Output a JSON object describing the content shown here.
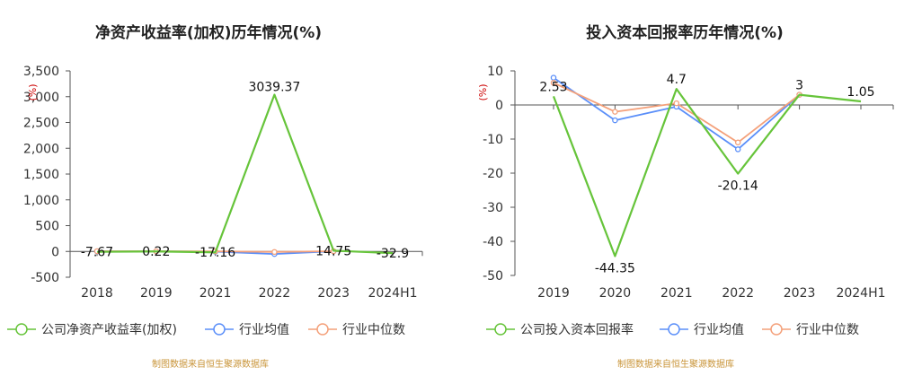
{
  "chart_data": [
    {
      "type": "line",
      "title": "净资产收益率(加权)历年情况(%)",
      "unit_label": "(%)",
      "categories": [
        "2018",
        "2019",
        "2021",
        "2022",
        "2023",
        "2024H1"
      ],
      "ylim": [
        -500,
        3500
      ],
      "yticks": [
        3500,
        3000,
        2500,
        2000,
        1500,
        1000,
        500,
        0,
        -500
      ],
      "ytick_labels": [
        "3,500",
        "3,000",
        "2,500",
        "2,000",
        "1,500",
        "1,000",
        "500",
        "0",
        "-500"
      ],
      "series": [
        {
          "name": "公司净资产收益率(加权)",
          "color": "#66c43a",
          "values": [
            -7.67,
            0.22,
            -17.16,
            3039.37,
            14.75,
            -32.9
          ],
          "labels": [
            "-7.67",
            "0.22",
            "-17.16",
            "3039.37",
            "14.75",
            "-32.9"
          ],
          "markers": false
        },
        {
          "name": "行业均值",
          "color": "#5b8ff9",
          "values": [
            3,
            2,
            -5,
            -50,
            3,
            null
          ],
          "markers": true
        },
        {
          "name": "行业中位数",
          "color": "#f4a07a",
          "values": [
            5,
            3,
            2,
            -10,
            4,
            null
          ],
          "markers": true
        }
      ],
      "source": "制图数据来自恒生聚源数据库"
    },
    {
      "type": "line",
      "title": "投入资本回报率历年情况(%)",
      "unit_label": "(%)",
      "categories": [
        "2019",
        "2020",
        "2021",
        "2022",
        "2023",
        "2024H1"
      ],
      "ylim": [
        -50,
        10
      ],
      "yticks": [
        10,
        0,
        -10,
        -20,
        -30,
        -40,
        -50
      ],
      "ytick_labels": [
        "10",
        "0",
        "-10",
        "-20",
        "-30",
        "-40",
        "-50"
      ],
      "series": [
        {
          "name": "公司投入资本回报率",
          "color": "#66c43a",
          "values": [
            2.53,
            -44.35,
            4.7,
            -20.14,
            3,
            1.05
          ],
          "labels": [
            "2.53",
            "-44.35",
            "4.7",
            "-20.14",
            "3",
            "1.05"
          ],
          "markers": false
        },
        {
          "name": "行业均值",
          "color": "#5b8ff9",
          "values": [
            8,
            -4.5,
            -0.5,
            -13,
            3,
            null
          ],
          "markers": true
        },
        {
          "name": "行业中位数",
          "color": "#f4a07a",
          "values": [
            6.5,
            -2,
            0.5,
            -11,
            3,
            null
          ],
          "markers": true
        }
      ],
      "source": "制图数据来自恒生聚源数据库"
    }
  ]
}
